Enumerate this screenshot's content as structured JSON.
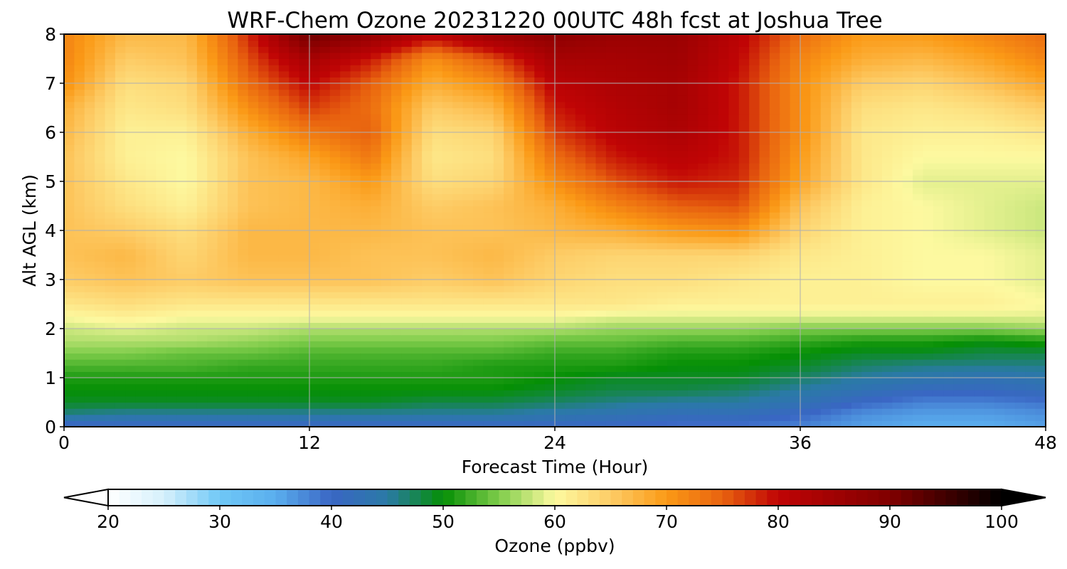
{
  "chart_data": {
    "type": "heatmap",
    "title": "WRF-Chem Ozone  20231220 00UTC 48h fcst at Joshua Tree",
    "xlabel": "Forecast Time (Hour)",
    "ylabel": "Alt AGL (km)",
    "xlim": [
      0,
      48
    ],
    "ylim": [
      0,
      8
    ],
    "xticks": [
      0,
      12,
      24,
      36,
      48
    ],
    "yticks": [
      0,
      1,
      2,
      3,
      4,
      5,
      6,
      7,
      8
    ],
    "grid": true,
    "x": [
      0,
      3,
      6,
      9,
      12,
      15,
      18,
      21,
      24,
      27,
      30,
      33,
      36,
      39,
      42,
      45,
      48
    ],
    "y": [
      0.0,
      0.25,
      0.5,
      0.75,
      1.0,
      1.25,
      1.5,
      1.75,
      2.0,
      2.25,
      2.5,
      3.0,
      3.5,
      4.0,
      4.5,
      5.0,
      5.5,
      6.0,
      6.5,
      7.0,
      7.5,
      8.0
    ],
    "z": [
      [
        39,
        40,
        40,
        40,
        40,
        40,
        40,
        40,
        40,
        40,
        39,
        39,
        38,
        36,
        35,
        35,
        36
      ],
      [
        46,
        45,
        45,
        45,
        45,
        45,
        45,
        45,
        44,
        43,
        42,
        42,
        40,
        37,
        36,
        36,
        37
      ],
      [
        49,
        49,
        49,
        49,
        49,
        49,
        48,
        48,
        47,
        46,
        45,
        45,
        43,
        40,
        38,
        38,
        39
      ],
      [
        50,
        50,
        50,
        50,
        50,
        50,
        50,
        50,
        49,
        48,
        48,
        47,
        45,
        43,
        41,
        41,
        42
      ],
      [
        51,
        51,
        51,
        51,
        51,
        51,
        51,
        51,
        50,
        49,
        49,
        49,
        47,
        45,
        44,
        43,
        44
      ],
      [
        53,
        53,
        53,
        52,
        52,
        52,
        52,
        51,
        51,
        51,
        50,
        50,
        49,
        47,
        46,
        46,
        46
      ],
      [
        55,
        55,
        54,
        54,
        53,
        53,
        53,
        53,
        52,
        52,
        51,
        51,
        50,
        49,
        49,
        48,
        48
      ],
      [
        57,
        57,
        57,
        56,
        55,
        55,
        55,
        55,
        54,
        54,
        53,
        53,
        52,
        51,
        51,
        50,
        51
      ],
      [
        58,
        59,
        58,
        58,
        57,
        57,
        57,
        57,
        57,
        56,
        56,
        56,
        55,
        55,
        55,
        55,
        56
      ],
      [
        60,
        61,
        60,
        60,
        60,
        60,
        60,
        60,
        60,
        59,
        59,
        59,
        59,
        59,
        59,
        59,
        59
      ],
      [
        62,
        63,
        62,
        62,
        62,
        62,
        62,
        62,
        62,
        62,
        61,
        61,
        61,
        61,
        61,
        61,
        60
      ],
      [
        65,
        66,
        65,
        66,
        66,
        66,
        65,
        66,
        64,
        63,
        63,
        62,
        61,
        61,
        60,
        60,
        59
      ],
      [
        66,
        67,
        64,
        67,
        67,
        66,
        66,
        67,
        65,
        64,
        64,
        64,
        62,
        61,
        60,
        60,
        59
      ],
      [
        66,
        65,
        63,
        67,
        67,
        67,
        66,
        66,
        67,
        68,
        70,
        71,
        64,
        61,
        60,
        59,
        58
      ],
      [
        66,
        63,
        61,
        66,
        67,
        68,
        65,
        66,
        68,
        72,
        75,
        76,
        66,
        61,
        60,
        59,
        58
      ],
      [
        66,
        62,
        60,
        66,
        67,
        70,
        63,
        64,
        71,
        76,
        79,
        78,
        69,
        62,
        59,
        59,
        59
      ],
      [
        66,
        61,
        60,
        66,
        69,
        73,
        62,
        63,
        74,
        79,
        81,
        79,
        70,
        62,
        60,
        60,
        60
      ],
      [
        67,
        61,
        61,
        68,
        73,
        75,
        63,
        64,
        77,
        81,
        83,
        79,
        71,
        62,
        61,
        61,
        62
      ],
      [
        68,
        62,
        63,
        71,
        77,
        74,
        65,
        67,
        79,
        82,
        84,
        79,
        71,
        63,
        62,
        63,
        65
      ],
      [
        71,
        63,
        64,
        74,
        80,
        75,
        68,
        71,
        81,
        83,
        84,
        79,
        71,
        65,
        64,
        66,
        69
      ],
      [
        72,
        65,
        66,
        76,
        84,
        79,
        71,
        76,
        84,
        84,
        85,
        80,
        72,
        68,
        67,
        69,
        72
      ],
      [
        72,
        67,
        67,
        78,
        92,
        87,
        81,
        86,
        88,
        86,
        86,
        81,
        74,
        70,
        70,
        72,
        74
      ]
    ],
    "colorbar": {
      "label": "Ozone  (ppbv)",
      "min": 20,
      "max": 100,
      "ticks": [
        20,
        30,
        40,
        50,
        60,
        70,
        80,
        90,
        100
      ],
      "extend": "both",
      "stops": [
        [
          20,
          "#ffffff"
        ],
        [
          25,
          "#d6f0fc"
        ],
        [
          30,
          "#6fc8f6"
        ],
        [
          35,
          "#5aaeee"
        ],
        [
          40,
          "#3a66c4"
        ],
        [
          45,
          "#2a7aa6"
        ],
        [
          50,
          "#058f05"
        ],
        [
          55,
          "#7ecc4a"
        ],
        [
          60,
          "#fdf9a0"
        ],
        [
          65,
          "#fdcc66"
        ],
        [
          70,
          "#fb9a16"
        ],
        [
          75,
          "#e8620f"
        ],
        [
          80,
          "#c00405"
        ],
        [
          90,
          "#800000"
        ],
        [
          100,
          "#000000"
        ]
      ]
    }
  }
}
